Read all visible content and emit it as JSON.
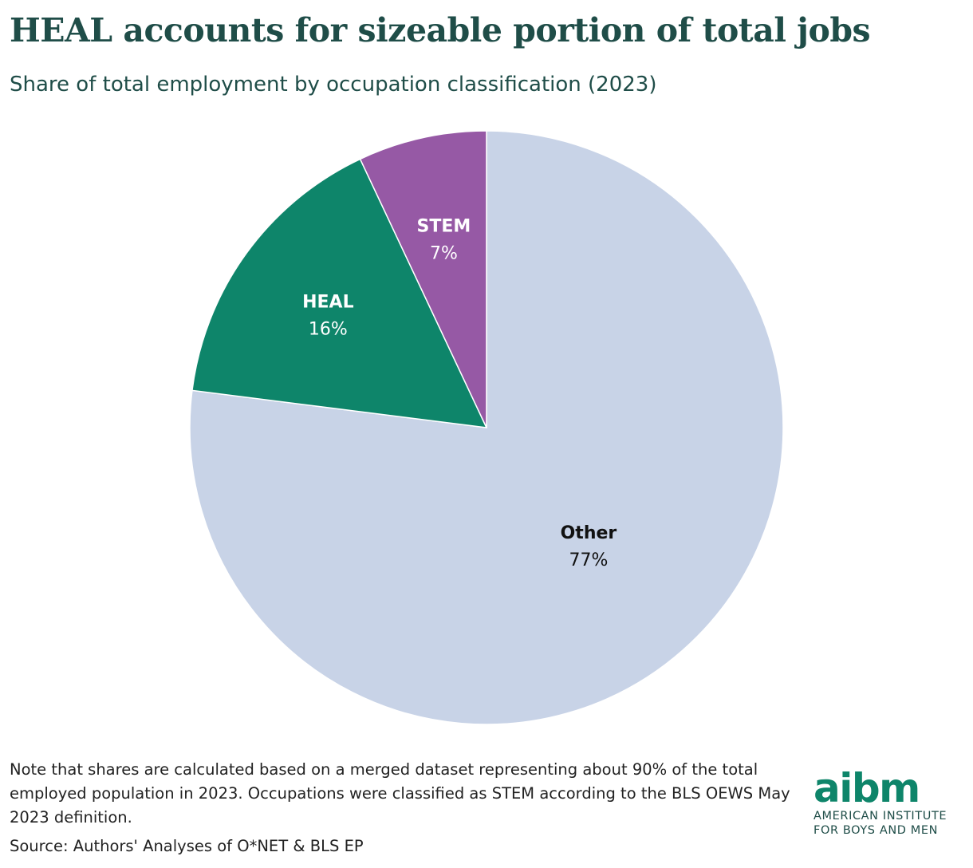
{
  "header": {
    "title": "HEAL accounts for sizeable portion of total jobs",
    "subtitle": "Share of total employment by occupation classification (2023)"
  },
  "chart_data": {
    "type": "pie",
    "title": "HEAL accounts for sizeable portion of total jobs",
    "subtitle": "Share of total employment by occupation classification (2023)",
    "categories": [
      "Other",
      "HEAL",
      "STEM"
    ],
    "values": [
      77,
      16,
      7
    ],
    "labels": [
      "77%",
      "16%",
      "7%"
    ],
    "colors": [
      "#c8d3e7",
      "#0e856a",
      "#9659a5"
    ],
    "label_colors": [
      "#111111",
      "#ffffff",
      "#ffffff"
    ],
    "start": "12 o'clock",
    "direction": "clockwise"
  },
  "footer": {
    "note": "Note that shares are calculated based on a merged dataset representing about 90% of the total employed population in 2023. Occupations were classified as STEM according to the BLS OEWS May 2023 definition.",
    "source": "Source: Authors' Analyses of O*NET & BLS EP"
  },
  "logo": {
    "mark": "aibm",
    "line1": "AMERICAN INSTITUTE",
    "line2": "FOR BOYS AND MEN",
    "color": "#0e856a",
    "text_color": "#1f4d48"
  }
}
